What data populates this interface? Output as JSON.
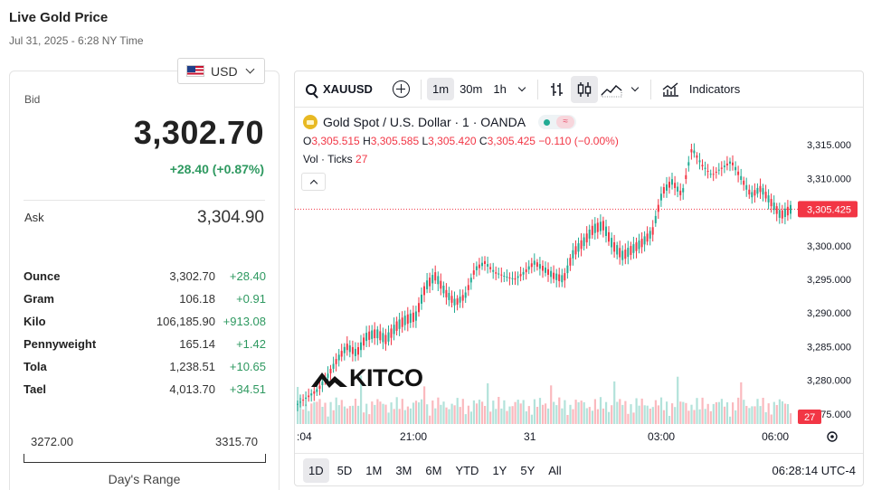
{
  "header": {
    "title": "Live Gold Price",
    "subtitle": "Jul 31, 2025 - 6:28 NY Time"
  },
  "currency": {
    "selected": "USD"
  },
  "quote": {
    "bid_label": "Bid",
    "bid": "3,302.70",
    "change": "+28.40 (+0.87%)",
    "ask_label": "Ask",
    "ask": "3,304.90"
  },
  "units": [
    {
      "name": "Ounce",
      "price": "3,302.70",
      "change": "+28.40"
    },
    {
      "name": "Gram",
      "price": "106.18",
      "change": "+0.91"
    },
    {
      "name": "Kilo",
      "price": "106,185.90",
      "change": "+913.08"
    },
    {
      "name": "Pennyweight",
      "price": "165.14",
      "change": "+1.42"
    },
    {
      "name": "Tola",
      "price": "1,238.51",
      "change": "+10.65"
    },
    {
      "name": "Tael",
      "price": "4,013.70",
      "change": "+34.51"
    }
  ],
  "day_range": {
    "low": "3272.00",
    "high": "3315.70",
    "label": "Day's Range"
  },
  "toolbar": {
    "symbol": "XAUUSD",
    "intervals": [
      "1m",
      "30m",
      "1h"
    ],
    "active_interval": "1m",
    "indicators_label": "Indicators"
  },
  "legend": {
    "title": "Gold Spot / U.S. Dollar · 1 · OANDA",
    "o_label": "O",
    "o": "3,305.515",
    "h_label": "H",
    "h": "3,305.585",
    "l_label": "L",
    "l": "3,305.420",
    "c_label": "C",
    "c": "3,305.425",
    "chg": "−0.110 (−0.00%)",
    "vol_label": "Vol · Ticks",
    "vol": "27"
  },
  "logo": {
    "text": "KITCO"
  },
  "ranges": [
    "1D",
    "5D",
    "1M",
    "3M",
    "6M",
    "YTD",
    "1Y",
    "5Y",
    "All"
  ],
  "active_range": "1D",
  "clock": "06:28:14 UTC-4",
  "colors": {
    "up": "#22ab94",
    "down": "#f23645",
    "positive_text": "#2e9960"
  },
  "chart_data": {
    "type": "line",
    "x_ticks": [
      ":04",
      "21:00",
      "31",
      "03:00",
      "06:00"
    ],
    "y_ticks": [
      "3,315.000",
      "3,310.000",
      "3,305.000",
      "3,300.000",
      "3,295.000",
      "3,290.000",
      "3,285.000",
      "3,280.000",
      "3,275.000"
    ],
    "ylim": [
      3273.5,
      3316.5
    ],
    "last_price": 3305.425,
    "last_price_label": "3,305.425",
    "volume_label": "27",
    "x": [
      0,
      2,
      4,
      6,
      8,
      10,
      12,
      14,
      16,
      18,
      20,
      22,
      24,
      26,
      28,
      30,
      32,
      34,
      36,
      38,
      40,
      42,
      44,
      46,
      48,
      50,
      52,
      54,
      56,
      58,
      60,
      62,
      64,
      66,
      68,
      70,
      72,
      74,
      76,
      78,
      80,
      82,
      84,
      86,
      88,
      90,
      92,
      94,
      96,
      98,
      100
    ],
    "values": [
      3276.5,
      3277.5,
      3278.5,
      3280.5,
      3283.0,
      3285.0,
      3284.0,
      3286.5,
      3287.0,
      3286.0,
      3288.0,
      3289.0,
      3289.5,
      3294.0,
      3295.5,
      3293.0,
      3291.5,
      3292.5,
      3296.5,
      3297.5,
      3296.0,
      3295.5,
      3295.0,
      3296.0,
      3297.5,
      3296.5,
      3295.5,
      3295.0,
      3299.0,
      3300.5,
      3302.5,
      3303.0,
      3300.0,
      3298.5,
      3299.5,
      3300.5,
      3302.0,
      3308.0,
      3309.5,
      3307.5,
      3314.5,
      3312.0,
      3310.5,
      3311.5,
      3312.5,
      3310.0,
      3307.5,
      3308.5,
      3306.5,
      3304.5,
      3305.4
    ]
  }
}
